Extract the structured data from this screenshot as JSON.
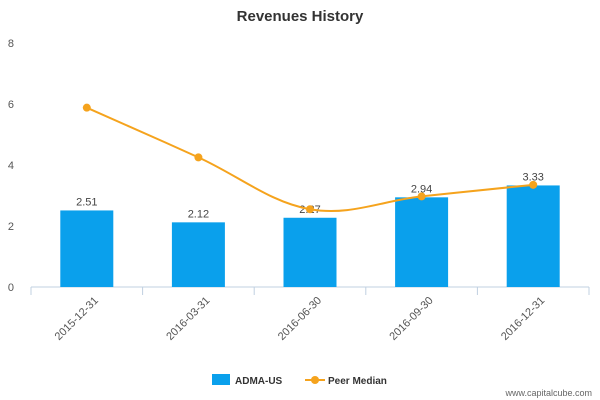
{
  "chart_data": {
    "type": "bar",
    "title": "Revenues History",
    "categories": [
      "2015-12-31",
      "2016-03-31",
      "2016-06-30",
      "2016-09-30",
      "2016-12-31"
    ],
    "series": [
      {
        "name": "ADMA-US",
        "kind": "bar",
        "color": "#0aa0ec",
        "values": [
          2.51,
          2.12,
          2.27,
          2.94,
          3.33
        ],
        "labels": [
          "2.51",
          "2.12",
          "2.27",
          "2.94",
          "3.33"
        ]
      },
      {
        "name": "Peer Median",
        "kind": "line",
        "color": "#f5a31d",
        "values": [
          5.88,
          4.25,
          2.55,
          2.97,
          3.35
        ]
      }
    ],
    "y_ticks": [
      "0",
      "2",
      "4",
      "6",
      "8"
    ],
    "ylim": [
      0,
      8
    ],
    "xlabel": "",
    "ylabel": "",
    "legend": "bottom-center"
  },
  "watermark": "www.capitalcube.com"
}
